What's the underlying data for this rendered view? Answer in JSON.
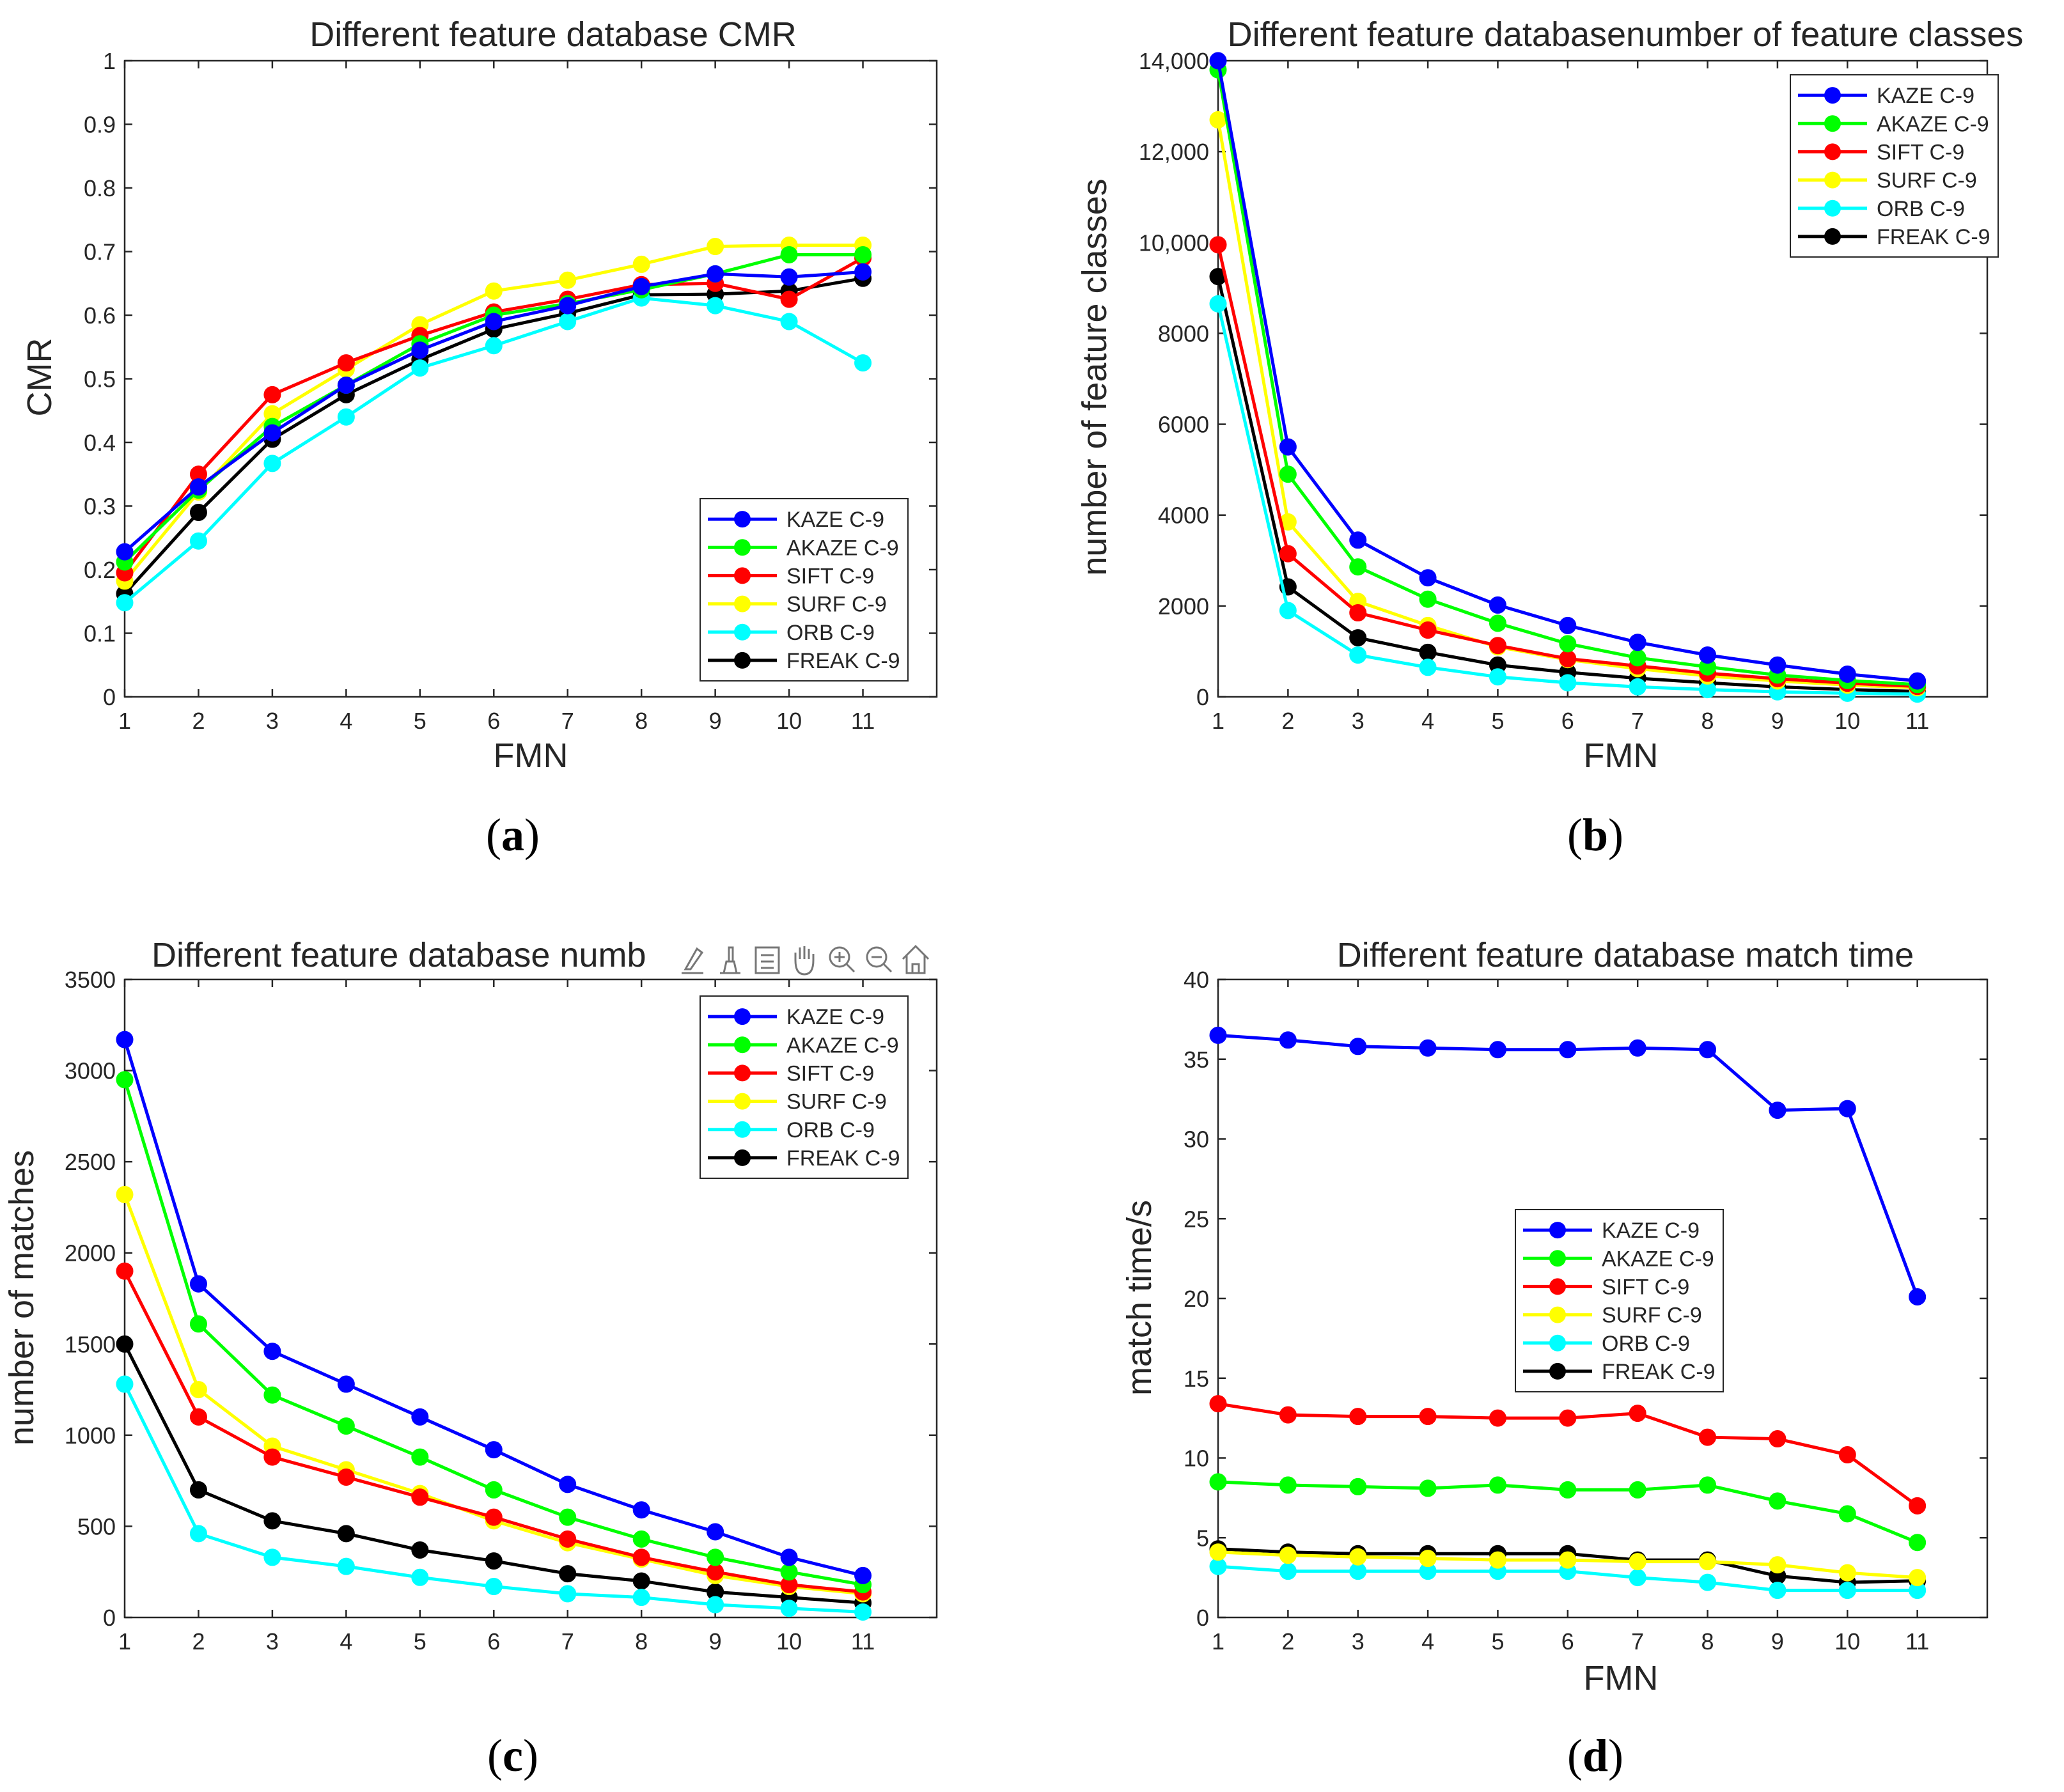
{
  "colors": {
    "KAZE": "#0000ff",
    "AKAZE": "#00ff00",
    "SIFT": "#ff0000",
    "SURF": "#ffff00",
    "ORB": "#00ffff",
    "FREAK": "#000000"
  },
  "toolbar_icons": [
    "brush-icon",
    "datatip-icon",
    "legend-icon",
    "pan-icon",
    "zoom-in-icon",
    "zoom-out-icon",
    "home-icon"
  ],
  "chart_data": [
    {
      "panel_label": "a",
      "type": "line",
      "title": "Different feature database CMR",
      "xlabel": "FMN",
      "ylabel": "CMR",
      "x": [
        1,
        2,
        3,
        4,
        5,
        6,
        7,
        8,
        9,
        10,
        11
      ],
      "xlim": [
        1,
        12
      ],
      "ylim": [
        0,
        1
      ],
      "xticks": [
        "1",
        "2",
        "3",
        "4",
        "5",
        "6",
        "7",
        "8",
        "9",
        "10",
        "11"
      ],
      "yticks": [
        "0",
        "0.1",
        "0.2",
        "0.3",
        "0.4",
        "0.5",
        "0.6",
        "0.7",
        "0.8",
        "0.9",
        "1"
      ],
      "legend_position": "bottom-right",
      "series": [
        {
          "name": "KAZE C-9",
          "key": "KAZE",
          "values": [
            0.228,
            0.33,
            0.415,
            0.49,
            0.545,
            0.59,
            0.615,
            0.645,
            0.665,
            0.66,
            0.668
          ]
        },
        {
          "name": "AKAZE C-9",
          "key": "AKAZE",
          "values": [
            0.212,
            0.325,
            0.425,
            0.49,
            0.555,
            0.6,
            0.618,
            0.64,
            0.665,
            0.695,
            0.695
          ]
        },
        {
          "name": "SIFT C-9",
          "key": "SIFT",
          "values": [
            0.195,
            0.35,
            0.475,
            0.525,
            0.568,
            0.605,
            0.625,
            0.648,
            0.65,
            0.625,
            0.69
          ]
        },
        {
          "name": "SURF C-9",
          "key": "SURF",
          "values": [
            0.182,
            0.322,
            0.445,
            0.515,
            0.585,
            0.638,
            0.655,
            0.68,
            0.708,
            0.71,
            0.71
          ]
        },
        {
          "name": "ORB C-9",
          "key": "ORB",
          "values": [
            0.148,
            0.245,
            0.367,
            0.44,
            0.517,
            0.552,
            0.59,
            0.627,
            0.615,
            0.59,
            0.525
          ]
        },
        {
          "name": "FREAK C-9",
          "key": "FREAK",
          "values": [
            0.162,
            0.29,
            0.405,
            0.475,
            0.53,
            0.578,
            0.603,
            0.632,
            0.633,
            0.638,
            0.658
          ]
        }
      ]
    },
    {
      "panel_label": "b",
      "type": "line",
      "title": "Different feature databasenumber of feature classes",
      "xlabel": "FMN",
      "ylabel": "number of feature classes",
      "x": [
        1,
        2,
        3,
        4,
        5,
        6,
        7,
        8,
        9,
        10,
        11
      ],
      "xlim": [
        1,
        12
      ],
      "ylim": [
        0,
        14000
      ],
      "xticks": [
        "1",
        "2",
        "3",
        "4",
        "5",
        "6",
        "7",
        "8",
        "9",
        "10",
        "11"
      ],
      "yticks": [
        "0",
        "2000",
        "4000",
        "6000",
        "8000",
        "10,000",
        "12,000",
        "14,000"
      ],
      "legend_position": "top-right",
      "series": [
        {
          "name": "KAZE C-9",
          "key": "KAZE",
          "values": [
            14000,
            5500,
            3450,
            2620,
            2020,
            1570,
            1200,
            920,
            700,
            500,
            350
          ]
        },
        {
          "name": "AKAZE C-9",
          "key": "AKAZE",
          "values": [
            13800,
            4900,
            2860,
            2150,
            1620,
            1170,
            860,
            660,
            480,
            360,
            270
          ]
        },
        {
          "name": "SIFT C-9",
          "key": "SIFT",
          "values": [
            9950,
            3150,
            1850,
            1470,
            1130,
            840,
            680,
            520,
            400,
            300,
            230
          ]
        },
        {
          "name": "SURF C-9",
          "key": "SURF",
          "values": [
            12700,
            3850,
            2100,
            1570,
            1100,
            820,
            620,
            460,
            350,
            260,
            200
          ]
        },
        {
          "name": "ORB C-9",
          "key": "ORB",
          "values": [
            8650,
            1900,
            920,
            650,
            440,
            310,
            220,
            160,
            110,
            80,
            60
          ]
        },
        {
          "name": "FREAK C-9",
          "key": "FREAK",
          "values": [
            9250,
            2420,
            1300,
            980,
            700,
            540,
            410,
            310,
            220,
            160,
            120
          ]
        }
      ]
    },
    {
      "panel_label": "c",
      "type": "line",
      "title": "Different feature database numb",
      "xlabel": "",
      "ylabel": "number of matches",
      "x": [
        1,
        2,
        3,
        4,
        5,
        6,
        7,
        8,
        9,
        10,
        11
      ],
      "xlim": [
        1,
        12
      ],
      "ylim": [
        0,
        3500
      ],
      "xticks": [
        "1",
        "2",
        "3",
        "4",
        "5",
        "6",
        "7",
        "8",
        "9",
        "10",
        "11"
      ],
      "yticks": [
        "0",
        "500",
        "1000",
        "1500",
        "2000",
        "2500",
        "3000",
        "3500"
      ],
      "legend_position": "top-right",
      "series": [
        {
          "name": "KAZE C-9",
          "key": "KAZE",
          "values": [
            3170,
            1830,
            1460,
            1280,
            1100,
            920,
            730,
            590,
            470,
            330,
            230
          ]
        },
        {
          "name": "AKAZE C-9",
          "key": "AKAZE",
          "values": [
            2950,
            1610,
            1220,
            1050,
            880,
            700,
            550,
            430,
            330,
            250,
            180
          ]
        },
        {
          "name": "SIFT C-9",
          "key": "SIFT",
          "values": [
            1900,
            1100,
            880,
            770,
            660,
            550,
            430,
            330,
            250,
            180,
            140
          ]
        },
        {
          "name": "SURF C-9",
          "key": "SURF",
          "values": [
            2320,
            1250,
            940,
            810,
            680,
            530,
            410,
            320,
            230,
            170,
            130
          ]
        },
        {
          "name": "ORB C-9",
          "key": "ORB",
          "values": [
            1280,
            460,
            330,
            280,
            220,
            170,
            130,
            110,
            70,
            50,
            30
          ]
        },
        {
          "name": "FREAK C-9",
          "key": "FREAK",
          "values": [
            1500,
            700,
            530,
            460,
            370,
            310,
            240,
            200,
            140,
            110,
            80
          ]
        }
      ]
    },
    {
      "panel_label": "d",
      "type": "line",
      "title": "Different feature database match time",
      "xlabel": "FMN",
      "ylabel": "match time/s",
      "x": [
        1,
        2,
        3,
        4,
        5,
        6,
        7,
        8,
        9,
        10,
        11
      ],
      "xlim": [
        1,
        12
      ],
      "ylim": [
        0,
        40
      ],
      "xticks": [
        "1",
        "2",
        "3",
        "4",
        "5",
        "6",
        "7",
        "8",
        "9",
        "10",
        "11"
      ],
      "yticks": [
        "0",
        "5",
        "10",
        "15",
        "20",
        "25",
        "30",
        "35",
        "40"
      ],
      "legend_position": "center-left",
      "series": [
        {
          "name": "KAZE C-9",
          "key": "KAZE",
          "values": [
            36.5,
            36.2,
            35.8,
            35.7,
            35.6,
            35.6,
            35.7,
            35.6,
            31.8,
            31.9,
            20.1
          ]
        },
        {
          "name": "AKAZE C-9",
          "key": "AKAZE",
          "values": [
            8.5,
            8.3,
            8.2,
            8.1,
            8.3,
            8.0,
            8.0,
            8.3,
            7.3,
            6.5,
            4.7
          ]
        },
        {
          "name": "SIFT C-9",
          "key": "SIFT",
          "values": [
            13.4,
            12.7,
            12.6,
            12.6,
            12.5,
            12.5,
            12.8,
            11.3,
            11.2,
            10.2,
            7.0
          ]
        },
        {
          "name": "SURF C-9",
          "key": "SURF",
          "values": [
            4.1,
            3.9,
            3.8,
            3.7,
            3.6,
            3.6,
            3.5,
            3.5,
            3.3,
            2.8,
            2.5
          ]
        },
        {
          "name": "ORB C-9",
          "key": "ORB",
          "values": [
            3.2,
            2.9,
            2.9,
            2.9,
            2.9,
            2.9,
            2.5,
            2.2,
            1.7,
            1.7,
            1.7
          ]
        },
        {
          "name": "FREAK C-9",
          "key": "FREAK",
          "values": [
            4.3,
            4.1,
            4.0,
            4.0,
            4.0,
            4.0,
            3.6,
            3.6,
            2.6,
            2.2,
            2.3
          ]
        }
      ]
    }
  ]
}
